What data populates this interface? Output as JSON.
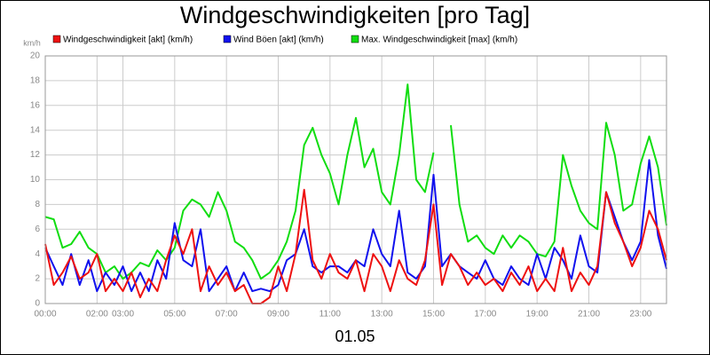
{
  "chart_data": {
    "type": "line",
    "title": "Windgeschwindigkeiten [pro Tag]",
    "y_unit": "km/h",
    "x_label": "01.05",
    "x": [
      0,
      0.33,
      0.67,
      1,
      1.33,
      1.67,
      2,
      2.33,
      2.67,
      3,
      3.33,
      3.67,
      4,
      4.33,
      4.67,
      5,
      5.33,
      5.67,
      6,
      6.33,
      6.67,
      7,
      7.33,
      7.67,
      8,
      8.33,
      8.67,
      9,
      9.33,
      9.67,
      10,
      10.33,
      10.67,
      11,
      11.33,
      11.67,
      12,
      12.33,
      12.67,
      13,
      13.33,
      13.67,
      14,
      14.33,
      14.67,
      15,
      15.33,
      15.67,
      16,
      16.33,
      16.67,
      17,
      17.33,
      17.67,
      18,
      18.33,
      18.67,
      19,
      19.33,
      19.67,
      20,
      20.33,
      20.67,
      21,
      21.33,
      21.67,
      22,
      22.33,
      22.67,
      23,
      23.33,
      23.67,
      24
    ],
    "series": [
      {
        "name": "Windgeschwindigkeit [akt] (km/h)",
        "color": "#ee1111",
        "values": [
          4.8,
          1.5,
          2.5,
          3.8,
          2.0,
          2.5,
          4.0,
          1.0,
          2.0,
          1.0,
          2.5,
          0.5,
          2.0,
          1.0,
          3.5,
          5.5,
          4.0,
          6.0,
          1.0,
          3.0,
          1.5,
          2.5,
          1.0,
          1.5,
          0.0,
          0.0,
          0.5,
          3.0,
          1.0,
          4.0,
          9.2,
          3.5,
          2.0,
          4.0,
          2.5,
          2.0,
          3.5,
          1.0,
          4.0,
          3.0,
          1.0,
          3.5,
          2.0,
          1.5,
          3.5,
          8.0,
          1.5,
          4.0,
          3.0,
          1.5,
          2.5,
          1.5,
          2.0,
          1.0,
          2.5,
          1.5,
          3.0,
          1.0,
          2.0,
          1.0,
          4.5,
          1.0,
          2.5,
          1.5,
          3.0,
          9.0,
          6.5,
          5.0,
          3.0,
          4.5,
          7.5,
          6.0,
          3.5
        ]
      },
      {
        "name": "Wind Böen [akt] (km/h)",
        "color": "#1111ee",
        "values": [
          4.5,
          3.0,
          1.5,
          4.0,
          1.5,
          3.5,
          1.0,
          2.5,
          1.5,
          3.0,
          1.0,
          2.5,
          1.0,
          3.5,
          2.0,
          6.5,
          3.5,
          3.0,
          6.0,
          1.0,
          2.0,
          3.0,
          1.0,
          2.5,
          1.0,
          1.2,
          1.0,
          1.5,
          3.5,
          4.0,
          6.0,
          3.0,
          2.5,
          3.0,
          3.0,
          2.5,
          3.5,
          3.0,
          6.0,
          4.0,
          3.0,
          7.5,
          2.5,
          2.0,
          3.0,
          10.4,
          3.0,
          4.0,
          3.0,
          2.5,
          2.0,
          3.5,
          2.0,
          1.5,
          3.0,
          2.0,
          1.5,
          4.0,
          2.0,
          4.5,
          3.5,
          2.0,
          5.5,
          3.0,
          2.5,
          9.0,
          7.0,
          5.0,
          3.5,
          5.0,
          11.6,
          5.5,
          2.8
        ]
      },
      {
        "name": "Max. Windgeschwindigkeit [max] (km/h)",
        "color": "#11dd11",
        "values": [
          7.0,
          6.8,
          4.5,
          4.8,
          5.8,
          4.5,
          4.0,
          2.5,
          3.0,
          2.0,
          2.5,
          3.3,
          3.0,
          4.3,
          3.5,
          4.5,
          7.5,
          8.4,
          8.0,
          7.0,
          9.0,
          7.5,
          5.0,
          4.5,
          3.5,
          2.0,
          2.5,
          3.5,
          5.0,
          7.5,
          12.8,
          14.2,
          12.0,
          10.5,
          8.0,
          12.0,
          15.0,
          11.0,
          12.5,
          9.0,
          8.0,
          12.0,
          17.7,
          10.0,
          9.0,
          12.2,
          null,
          14.4,
          8.0,
          5.0,
          5.5,
          4.5,
          4.0,
          5.5,
          4.5,
          5.5,
          5.0,
          4.0,
          3.8,
          5.0,
          12.0,
          9.5,
          7.5,
          6.5,
          6.0,
          14.6,
          12.0,
          7.5,
          8.0,
          11.3,
          13.5,
          11.0,
          6.3
        ]
      }
    ],
    "xlim": [
      0,
      24
    ],
    "xticks": [
      {
        "value": 0,
        "label": "00:00"
      },
      {
        "value": 2,
        "label": "02:00"
      },
      {
        "value": 3,
        "label": "03:00"
      },
      {
        "value": 5,
        "label": "05:00"
      },
      {
        "value": 7,
        "label": "07:00"
      },
      {
        "value": 9,
        "label": "09:00"
      },
      {
        "value": 11,
        "label": "11:00"
      },
      {
        "value": 13,
        "label": "13:00"
      },
      {
        "value": 15,
        "label": "15:00"
      },
      {
        "value": 17,
        "label": "17:00"
      },
      {
        "value": 19,
        "label": "19:00"
      },
      {
        "value": 21,
        "label": "21:00"
      },
      {
        "value": 23,
        "label": "23:00"
      }
    ],
    "ylim": [
      0,
      20
    ],
    "yticks": [
      0,
      2,
      4,
      6,
      8,
      10,
      12,
      14,
      16,
      18,
      20
    ],
    "grid": true
  }
}
